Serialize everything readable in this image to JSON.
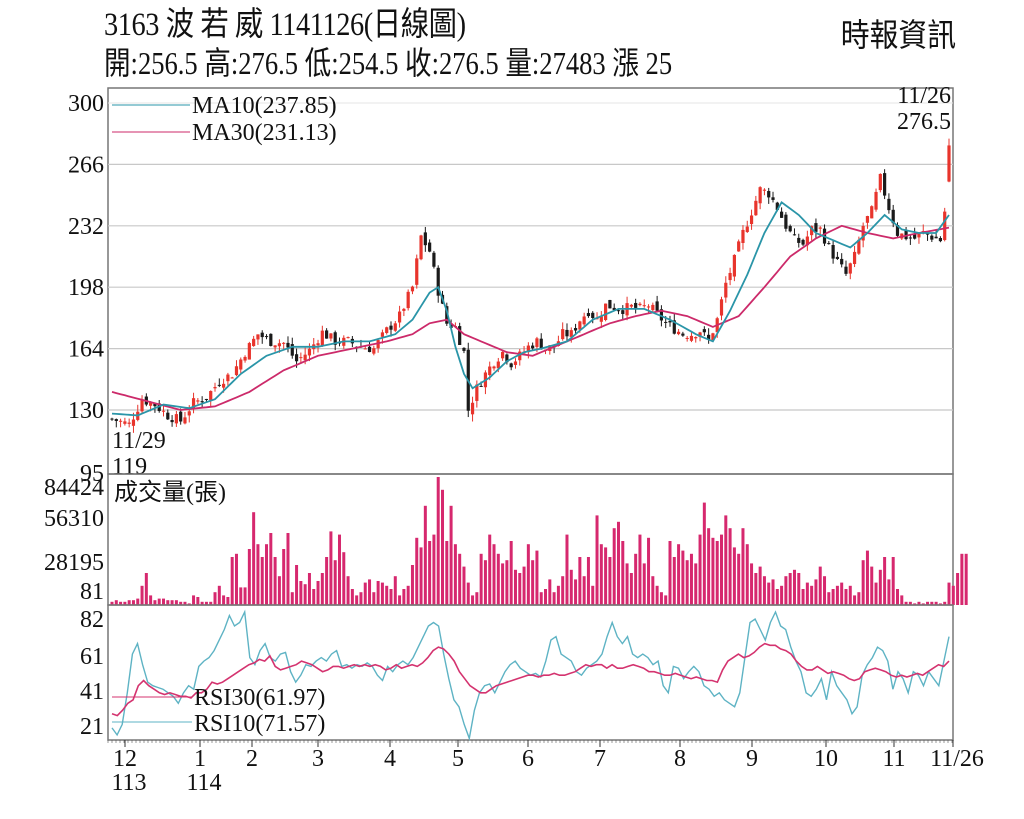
{
  "header": {
    "title": "3163  波 若 威 1141126(日線圖)",
    "subtitle": "開:256.5 高:276.5 低:254.5 收:276.5 量:27483 漲 25",
    "source": "時報資訊"
  },
  "colors": {
    "up": "#e8342c",
    "down": "#1a1a1a",
    "ma10": "#2a95a8",
    "ma30": "#cc2a6a",
    "volume": "#d6286e",
    "rsi10": "#5eb3c4",
    "rsi30": "#d4336f",
    "grid": "#c8c8c8",
    "axis": "#777777"
  },
  "annotations": {
    "last_date": "11/26",
    "last_price": "276.5",
    "low_date": "11/29",
    "low_price": "119",
    "ma10_label": "MA10(237.85)",
    "ma30_label": "MA30(231.13)",
    "volume_label": "成交量(張)",
    "rsi30_label": "RSI30(61.97)",
    "rsi10_label": "RSI10(71.57)"
  },
  "chart_data": [
    {
      "type": "candlestick",
      "title": "3163 波若威 1141126(日線圖)",
      "ylabel": "",
      "yticks": [
        300,
        266,
        232,
        198,
        164,
        130,
        95
      ],
      "ylim": [
        95,
        300
      ],
      "x_month_ticks": [
        "12\n113",
        "1\n114",
        "2",
        "3",
        "4",
        "5",
        "6",
        "7",
        "8",
        "9",
        "10",
        "11",
        "11/26"
      ],
      "series": [
        {
          "name": "MA10",
          "last": 237.85
        },
        {
          "name": "MA30",
          "last": 231.13
        }
      ],
      "ohlc_last": {
        "open": 256.5,
        "high": 276.5,
        "low": 254.5,
        "close": 276.5,
        "volume": 27483,
        "change": 25
      },
      "min_point": {
        "date": "11/29",
        "value": 119
      },
      "max_point": {
        "date": "11/26",
        "value": 276.5
      },
      "close_path": [
        [
          0,
          125
        ],
        [
          4,
          122
        ],
        [
          7,
          136
        ],
        [
          10,
          133
        ],
        [
          13,
          127
        ],
        [
          16,
          124
        ],
        [
          19,
          134
        ],
        [
          22,
          137
        ],
        [
          25,
          146
        ],
        [
          28,
          150
        ],
        [
          31,
          162
        ],
        [
          34,
          172
        ],
        [
          37,
          168
        ],
        [
          40,
          167
        ],
        [
          43,
          157
        ],
        [
          46,
          163
        ],
        [
          49,
          173
        ],
        [
          52,
          168
        ],
        [
          55,
          168
        ],
        [
          58,
          165
        ],
        [
          61,
          164
        ],
        [
          64,
          174
        ],
        [
          67,
          182
        ],
        [
          70,
          198
        ],
        [
          72,
          226
        ],
        [
          74,
          218
        ],
        [
          76,
          196
        ],
        [
          78,
          178
        ],
        [
          80,
          176
        ],
        [
          82,
          162
        ],
        [
          83,
          130
        ],
        [
          85,
          142
        ],
        [
          87,
          150
        ],
        [
          89,
          157
        ],
        [
          91,
          162
        ],
        [
          93,
          156
        ],
        [
          95,
          160
        ],
        [
          97,
          165
        ],
        [
          99,
          168
        ],
        [
          101,
          164
        ],
        [
          103,
          165
        ],
        [
          105,
          172
        ],
        [
          107,
          172
        ],
        [
          109,
          180
        ],
        [
          111,
          185
        ],
        [
          113,
          180
        ],
        [
          115,
          188
        ],
        [
          117,
          187
        ],
        [
          119,
          186
        ],
        [
          121,
          187
        ],
        [
          123,
          186
        ],
        [
          125,
          188
        ],
        [
          127,
          183
        ],
        [
          129,
          178
        ],
        [
          131,
          175
        ],
        [
          133,
          172
        ],
        [
          135,
          172
        ],
        [
          137,
          174
        ],
        [
          139,
          168
        ],
        [
          141,
          180
        ],
        [
          143,
          200
        ],
        [
          145,
          213
        ],
        [
          147,
          228
        ],
        [
          149,
          240
        ],
        [
          151,
          252
        ],
        [
          153,
          250
        ],
        [
          155,
          242
        ],
        [
          157,
          232
        ],
        [
          159,
          224
        ],
        [
          161,
          222
        ],
        [
          163,
          230
        ],
        [
          165,
          230
        ],
        [
          167,
          220
        ],
        [
          169,
          212
        ],
        [
          171,
          205
        ],
        [
          173,
          215
        ],
        [
          175,
          232
        ],
        [
          177,
          240
        ],
        [
          179,
          258
        ],
        [
          181,
          242
        ],
        [
          183,
          228
        ],
        [
          185,
          226
        ],
        [
          187,
          225
        ],
        [
          189,
          228
        ],
        [
          191,
          226
        ],
        [
          193,
          224
        ],
        [
          195,
          256
        ]
      ],
      "ma10_path": [
        [
          0,
          128
        ],
        [
          6,
          127
        ],
        [
          12,
          133
        ],
        [
          18,
          131
        ],
        [
          24,
          136
        ],
        [
          30,
          150
        ],
        [
          36,
          160
        ],
        [
          42,
          165
        ],
        [
          48,
          165
        ],
        [
          54,
          168
        ],
        [
          60,
          168
        ],
        [
          66,
          172
        ],
        [
          70,
          180
        ],
        [
          74,
          195
        ],
        [
          76,
          198
        ],
        [
          78,
          185
        ],
        [
          80,
          165
        ],
        [
          82,
          150
        ],
        [
          84,
          142
        ],
        [
          88,
          148
        ],
        [
          92,
          157
        ],
        [
          96,
          162
        ],
        [
          100,
          164
        ],
        [
          106,
          168
        ],
        [
          112,
          180
        ],
        [
          118,
          186
        ],
        [
          124,
          186
        ],
        [
          130,
          180
        ],
        [
          136,
          172
        ],
        [
          140,
          168
        ],
        [
          144,
          185
        ],
        [
          148,
          205
        ],
        [
          152,
          228
        ],
        [
          156,
          245
        ],
        [
          160,
          238
        ],
        [
          164,
          228
        ],
        [
          168,
          224
        ],
        [
          172,
          220
        ],
        [
          176,
          228
        ],
        [
          180,
          238
        ],
        [
          184,
          230
        ],
        [
          188,
          228
        ],
        [
          192,
          228
        ],
        [
          195,
          238
        ]
      ],
      "ma30_path": [
        [
          0,
          140
        ],
        [
          8,
          135
        ],
        [
          16,
          130
        ],
        [
          24,
          132
        ],
        [
          32,
          140
        ],
        [
          40,
          152
        ],
        [
          48,
          160
        ],
        [
          56,
          164
        ],
        [
          64,
          168
        ],
        [
          70,
          172
        ],
        [
          74,
          178
        ],
        [
          78,
          180
        ],
        [
          82,
          172
        ],
        [
          86,
          168
        ],
        [
          92,
          162
        ],
        [
          98,
          160
        ],
        [
          104,
          166
        ],
        [
          110,
          172
        ],
        [
          116,
          178
        ],
        [
          122,
          182
        ],
        [
          128,
          185
        ],
        [
          134,
          182
        ],
        [
          140,
          176
        ],
        [
          146,
          182
        ],
        [
          152,
          198
        ],
        [
          158,
          215
        ],
        [
          164,
          225
        ],
        [
          170,
          232
        ],
        [
          176,
          228
        ],
        [
          182,
          225
        ],
        [
          188,
          228
        ],
        [
          195,
          231
        ]
      ]
    },
    {
      "type": "bar",
      "title": "成交量(張)",
      "yticks": [
        84424,
        56310,
        28195,
        81
      ],
      "ylim": [
        81,
        84424
      ],
      "values": [
        2,
        3,
        2,
        2,
        3,
        3,
        4,
        12,
        20,
        6,
        3,
        4,
        4,
        3,
        3,
        3,
        2,
        2,
        1,
        6,
        5,
        2,
        2,
        2,
        8,
        12,
        6,
        5,
        30,
        32,
        11,
        11,
        35,
        58,
        38,
        30,
        38,
        45,
        30,
        18,
        35,
        45,
        8,
        25,
        15,
        13,
        20,
        10,
        15,
        20,
        30,
        46,
        28,
        44,
        33,
        18,
        10,
        6,
        8,
        14,
        16,
        8,
        15,
        14,
        12,
        10,
        18,
        6,
        10,
        12,
        25,
        42,
        36,
        62,
        40,
        44,
        80,
        72,
        40,
        62,
        38,
        32,
        24,
        14,
        6,
        8,
        32,
        28,
        44,
        38,
        32,
        26,
        28,
        40,
        22,
        20,
        24,
        38,
        28,
        34,
        8,
        10,
        16,
        8,
        12,
        18,
        44,
        22,
        16,
        30,
        18,
        30,
        12,
        56,
        38,
        36,
        30,
        48,
        52,
        40,
        26,
        20,
        32,
        44,
        26,
        42,
        18,
        12,
        8,
        6,
        40,
        30,
        38,
        34,
        28,
        32,
        26,
        44,
        64,
        48,
        42,
        40,
        44,
        56,
        48,
        36,
        32,
        48,
        38,
        26,
        20,
        24,
        18,
        14,
        16,
        10,
        12,
        18,
        20,
        22,
        20,
        10,
        14,
        12,
        16,
        24,
        18,
        8,
        10,
        12,
        14,
        10,
        12,
        6,
        8,
        28,
        34,
        24,
        14,
        22,
        30,
        16,
        30,
        10,
        6,
        2,
        2,
        1,
        2,
        1,
        2,
        2,
        2,
        1,
        2,
        14,
        12,
        20,
        32,
        32
      ]
    },
    {
      "type": "line",
      "title": "RSI",
      "yticks": [
        82,
        61,
        41,
        21
      ],
      "ylim": [
        15,
        88
      ],
      "series": [
        {
          "name": "RSI30",
          "last": 61.97,
          "values": [
            28,
            27,
            30,
            34,
            36,
            44,
            47,
            44,
            42,
            40,
            39,
            40,
            39,
            38,
            38,
            37,
            40,
            40,
            42,
            46,
            45,
            46,
            48,
            50,
            52,
            54,
            56,
            57,
            59,
            58,
            61,
            55,
            53,
            54,
            55,
            56,
            58,
            57,
            56,
            54,
            52,
            53,
            55,
            55,
            54,
            55,
            56,
            55,
            56,
            55,
            56,
            55,
            53,
            54,
            56,
            54,
            55,
            56,
            55,
            57,
            60,
            64,
            66,
            65,
            62,
            58,
            52,
            48,
            44,
            42,
            40,
            40,
            42,
            44,
            45,
            46,
            47,
            48,
            49,
            50,
            50,
            49,
            50,
            50,
            51,
            50,
            50,
            51,
            52,
            54,
            56,
            55,
            56,
            56,
            54,
            56,
            54,
            54,
            55,
            56,
            55,
            54,
            52,
            52,
            51,
            50,
            50,
            51,
            50,
            49,
            48,
            49,
            48,
            47,
            47,
            46,
            53,
            58,
            60,
            62,
            60,
            61,
            63,
            66,
            68,
            67,
            67,
            65,
            64,
            62,
            58,
            55,
            53,
            53,
            55,
            53,
            51,
            52,
            51,
            50,
            48,
            47,
            48,
            52,
            53,
            54,
            53,
            52,
            50,
            49,
            50,
            49,
            50,
            51,
            50,
            52,
            54,
            56,
            55,
            58
          ]
        },
        {
          "name": "RSI10",
          "last": 71.57,
          "values": [
            20,
            16,
            22,
            40,
            62,
            68,
            56,
            46,
            44,
            43,
            42,
            40,
            38,
            34,
            40,
            44,
            42,
            55,
            58,
            60,
            64,
            70,
            76,
            84,
            78,
            80,
            86,
            60,
            56,
            64,
            68,
            60,
            58,
            62,
            63,
            52,
            46,
            50,
            56,
            55,
            58,
            60,
            58,
            62,
            64,
            55,
            56,
            54,
            56,
            55,
            57,
            55,
            50,
            47,
            55,
            52,
            56,
            58,
            56,
            60,
            66,
            72,
            78,
            80,
            78,
            62,
            48,
            36,
            32,
            22,
            14,
            30,
            40,
            44,
            45,
            40,
            46,
            52,
            56,
            58,
            54,
            52,
            50,
            51,
            49,
            58,
            70,
            72,
            62,
            60,
            58,
            52,
            50,
            54,
            56,
            58,
            62,
            72,
            80,
            72,
            68,
            72,
            62,
            60,
            62,
            60,
            56,
            58,
            44,
            40,
            55,
            54,
            48,
            52,
            55,
            52,
            44,
            42,
            38,
            40,
            36,
            34,
            32,
            40,
            60,
            80,
            82,
            76,
            70,
            80,
            86,
            78,
            76,
            66,
            58,
            52,
            40,
            38,
            42,
            48,
            36,
            52,
            44,
            40,
            36,
            28,
            32,
            50,
            56,
            60,
            66,
            64,
            58,
            42,
            52,
            48,
            40,
            52,
            50,
            44,
            52,
            48,
            44,
            58,
            72
          ]
        }
      ]
    }
  ]
}
